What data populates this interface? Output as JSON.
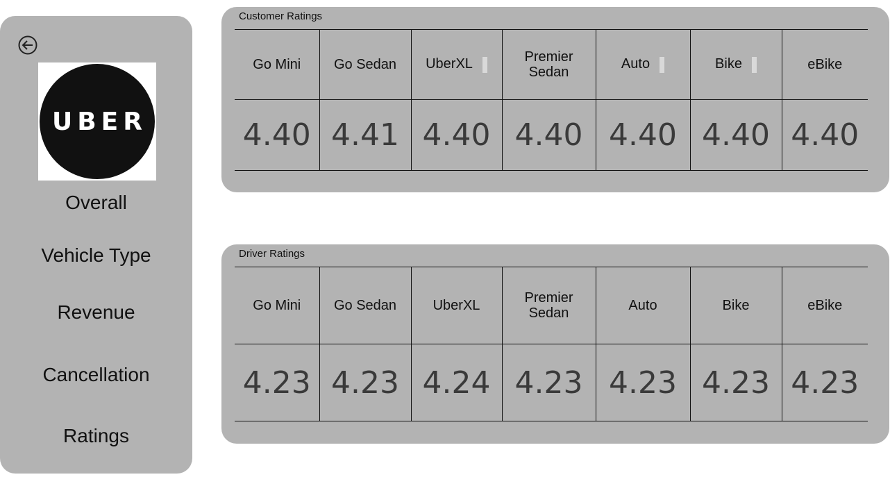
{
  "sidebar": {
    "back_icon": "arrow-left-circle-icon",
    "logo_text": "UBER",
    "nav": [
      {
        "label": "Overall"
      },
      {
        "label": "Vehicle Type"
      },
      {
        "label": "Revenue"
      },
      {
        "label": "Cancellation"
      },
      {
        "label": "Ratings"
      }
    ]
  },
  "customer_ratings": {
    "title": "Customer Ratings",
    "columns": [
      "Go Mini",
      "Go Sedan",
      "UberXL",
      "Premier Sedan",
      "Auto",
      "Bike",
      "eBike"
    ],
    "values": [
      "4.40",
      "4.41",
      "4.40",
      "4.40",
      "4.40",
      "4.40",
      "4.40"
    ]
  },
  "driver_ratings": {
    "title": "Driver Ratings",
    "columns": [
      "Go Mini",
      "Go Sedan",
      "UberXL",
      "Premier Sedan",
      "Auto",
      "Bike",
      "eBike"
    ],
    "values": [
      "4.23",
      "4.23",
      "4.24",
      "4.23",
      "4.23",
      "4.23",
      "4.23"
    ]
  },
  "colors": {
    "panel_bg": "#b3b3b3",
    "value_text": "#3a3a3a",
    "logo_bg": "#111111"
  }
}
